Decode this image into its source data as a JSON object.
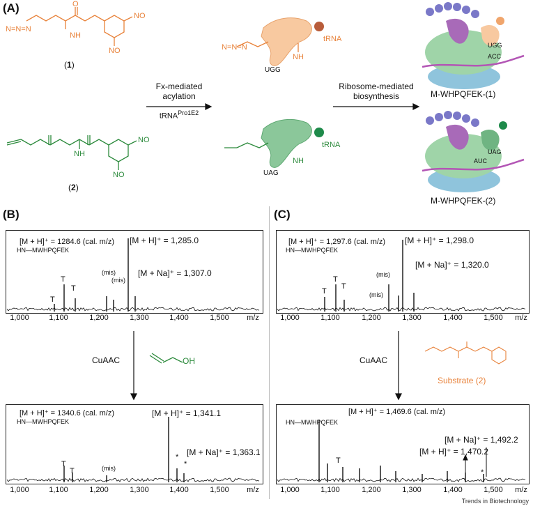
{
  "panels": {
    "a": "(A)",
    "b": "(B)",
    "c": "(C)"
  },
  "panel_a": {
    "cmp1_label": "1",
    "cmp2_label": "2",
    "no2": "NO",
    "nh2": "NH",
    "o": "O",
    "n3": "N=N=N",
    "trna": "tRNA",
    "codon1": "UGG",
    "codon2": "UAG",
    "anticodon1": "ACC",
    "anticodon2": "AUC",
    "arrow1_line1": "Fx-mediated",
    "arrow1_line2": "acylation",
    "arrow1_trna": "tRNA",
    "arrow1_trna_sup": "Pro1E2",
    "arrow2_line1": "Ribosome-mediated",
    "arrow2_line2": "biosynthesis",
    "product1": "M-WHPQFEK-(1)",
    "product2": "M-WHPQFEK-(2)",
    "colors": {
      "orange": "#e8823a",
      "green": "#2c8a3c",
      "ribo_green": "#9fd4a8",
      "ribo_blue": "#8fc4dc",
      "purple": "#a86ab8",
      "bead": "#7a78c8",
      "mrna": "#b356b5"
    }
  },
  "panel_b": {
    "top": {
      "calc": "[M + H]⁺ = 1284.6 (cal. m/z)",
      "mh": "[M + H]⁺ = 1,285.0",
      "mna": "[M + Na]⁺ = 1,307.0",
      "peptide": "HN—MWHPQFEK",
      "mis1": "(mis)",
      "mis2": "(mis)",
      "t_marks": [
        "T",
        "T",
        "T"
      ]
    },
    "reaction": "CuAAC",
    "reagent": "OH",
    "bottom": {
      "calc": "[M + H]⁺ = 1340.6 (cal. m/z)",
      "mh": "[M + H]⁺ = 1,341.1",
      "mna": "[M + Na]⁺ = 1,363.1",
      "peptide": "HN—MWHPQFEK",
      "mis1": "(mis)",
      "t_marks": [
        "T",
        "T"
      ],
      "stars": [
        "*",
        "*"
      ]
    },
    "ticks": [
      "1,000",
      "1,100",
      "1,200",
      "1,300",
      "1,400",
      "1,500"
    ],
    "unit": "m/z"
  },
  "panel_c": {
    "top": {
      "calc": "[M + H]⁺ = 1,297.6 (cal. m/z)",
      "mh": "[M + H]⁺ = 1,298.0",
      "mna": "[M + Na]⁺ = 1,320.0",
      "peptide": "HN—MWHPQFEK",
      "mis1": "(mis)",
      "mis2": "(mis)",
      "t_marks": [
        "T",
        "T",
        "T"
      ]
    },
    "reaction": "CuAAC",
    "substrate": "Substrate (2)",
    "bottom": {
      "calc": "[M + H]⁺ = 1,469.6 (cal. m/z)",
      "mna": "[M + Na]⁺ = 1,492.2",
      "mh": "[M + H]⁺ = 1,470.2",
      "peptide": "HN—MWHPQFEK",
      "t_marks": [
        "T"
      ],
      "stars": [
        "*"
      ]
    },
    "ticks": [
      "1,000",
      "1,100",
      "1,200",
      "1,300",
      "1,400",
      "1,500"
    ],
    "unit": "m/z"
  },
  "footer": "Trends in Biotechnology"
}
